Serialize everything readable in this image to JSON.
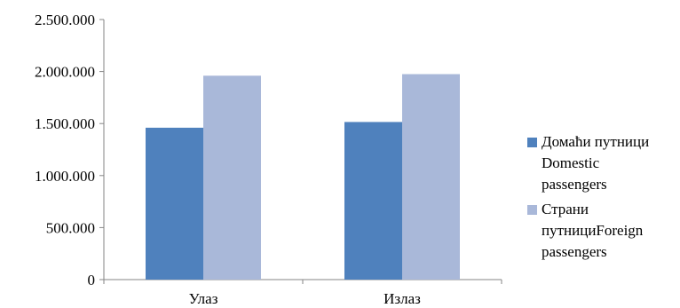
{
  "chart_data": {
    "type": "bar",
    "categories": [
      "Улаз",
      "Излаз"
    ],
    "series": [
      {
        "name": "Домаћи путници Domestic passengers",
        "legend_lines": [
          "Домаћи путници",
          "Domestic",
          "passengers"
        ],
        "color": "#4f81bd",
        "values": [
          1460000,
          1515000
        ]
      },
      {
        "name": "Страни путнициForeign passengers",
        "legend_lines": [
          "Страни",
          "путнициForeign",
          "passengers"
        ],
        "color": "#a9b8d9",
        "values": [
          1960000,
          1975000
        ]
      }
    ],
    "yticks": [
      "0",
      "500.000",
      "1.000.000",
      "1.500.000",
      "2.000.000",
      "2.500.000"
    ],
    "ytick_values": [
      0,
      500000,
      1000000,
      1500000,
      2000000,
      2500000
    ],
    "ylim": [
      0,
      2500000
    ],
    "title": "",
    "xlabel": "",
    "ylabel": "",
    "grid": false,
    "legend_position": "right"
  }
}
